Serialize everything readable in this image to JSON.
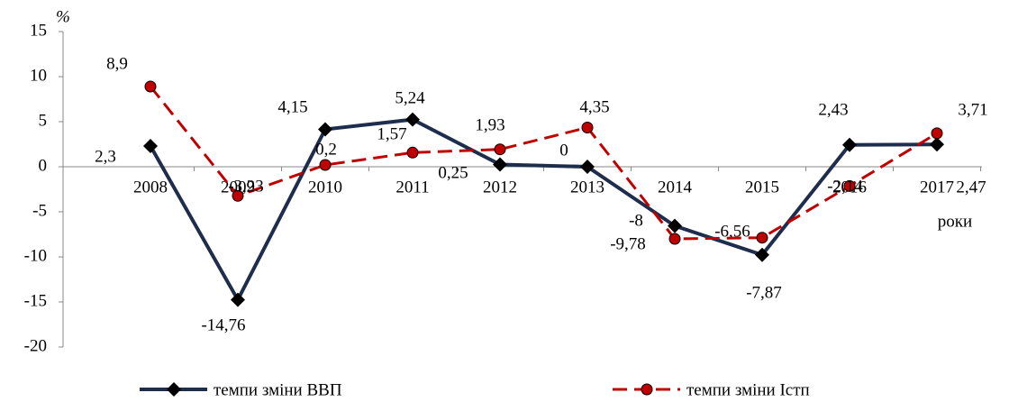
{
  "chart_data": {
    "type": "line",
    "y_label": "%",
    "x_label": "роки",
    "categories": [
      "2008",
      "2009",
      "2010",
      "2011",
      "2012",
      "2013",
      "2014",
      "2015",
      "2016",
      "2017"
    ],
    "series": [
      {
        "name": "темпи зміни ВВП",
        "color": "#1f2d4d",
        "marker": "diamond",
        "dashed": false,
        "values": [
          2.3,
          -14.76,
          4.15,
          5.24,
          0.25,
          0,
          -6.56,
          -9.78,
          2.43,
          2.47
        ],
        "value_labels": [
          "2,3",
          "-14,76",
          "4,15",
          "5,24",
          "0,25",
          "0",
          "-6,56",
          "-9,78",
          "2,43",
          "2,47"
        ]
      },
      {
        "name": "темпи зміни Iстп",
        "color": "#c00000",
        "marker": "circle",
        "dashed": true,
        "values": [
          8.9,
          -3.23,
          0.2,
          1.57,
          1.93,
          4.35,
          -8,
          -7.87,
          -2.14,
          3.71
        ],
        "value_labels": [
          "8,9",
          "-3,23",
          "0,2",
          "1,57",
          "1,93",
          "4,35",
          "-8",
          "-7,87",
          "-2,14",
          "3,71"
        ]
      }
    ],
    "ylim": [
      -20,
      15
    ],
    "yticks": [
      -20,
      -15,
      -10,
      -5,
      0,
      5,
      10,
      15
    ],
    "grid": false,
    "legend": "bottom"
  }
}
